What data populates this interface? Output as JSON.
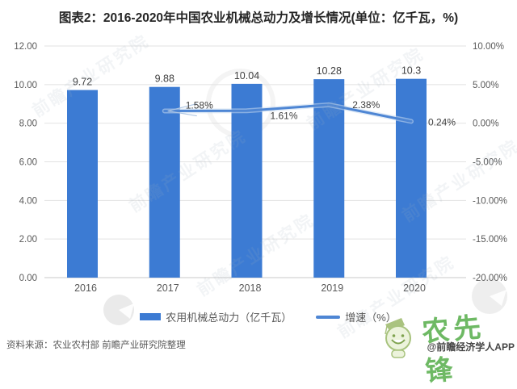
{
  "title": "图表2：2016-2020年中国农业机械总动力及增长情况(单位：亿千瓦，%)",
  "chart_data": {
    "type": "bar",
    "combo": "bar+line dual axis",
    "categories": [
      "2016",
      "2017",
      "2018",
      "2019",
      "2020"
    ],
    "series": [
      {
        "name": "农用机械总动力（亿千瓦）",
        "type": "bar",
        "axis": "left",
        "values": [
          9.72,
          9.88,
          10.04,
          10.28,
          10.3
        ],
        "data_labels": [
          "9.72",
          "9.88",
          "10.04",
          "10.28",
          "10.3"
        ]
      },
      {
        "name": "增速（%）",
        "type": "line",
        "axis": "right",
        "values": [
          null,
          1.58,
          1.61,
          2.38,
          0.24
        ],
        "data_labels": [
          null,
          "1.58%",
          "1.61%",
          "2.38%",
          "0.24%"
        ]
      }
    ],
    "left_axis": {
      "min": 0,
      "max": 12,
      "step": 2,
      "tick_labels": [
        "12.00",
        "10.00",
        "8.00",
        "6.00",
        "4.00",
        "2.00",
        "0.00"
      ]
    },
    "right_axis": {
      "min": -20,
      "max": 10,
      "step": 5,
      "tick_labels": [
        "10.00%",
        "5.00%",
        "0.00%",
        "-5.00%",
        "-10.00%",
        "-15.00%",
        "-20.00%"
      ]
    },
    "grid": true,
    "legend_position": "bottom"
  },
  "legend": {
    "items": [
      {
        "label": "农用机械总动力（亿千瓦）",
        "marker": "bar"
      },
      {
        "label": "增速（%）",
        "marker": "line"
      }
    ]
  },
  "footer": {
    "source": "资料来源：农业农村部 前瞻产业研究院整理",
    "credit": "@前瞻经济学人APP"
  },
  "watermark": {
    "brand": "前瞻产业研究院",
    "stamp": "农先锋"
  },
  "colors": {
    "bar": "#3C7BD3",
    "line": "#4E86D4",
    "line_halo": "#CBDCF0",
    "leader": "#AFC7E4",
    "grid": "#E2E2E2",
    "axis_line": "#C9C9C9",
    "axis_text": "#595959",
    "value_text": "#3F3F3F",
    "title_text": "#262626",
    "stamp": "#4BA83E",
    "watermark": "#9FB0BE"
  }
}
